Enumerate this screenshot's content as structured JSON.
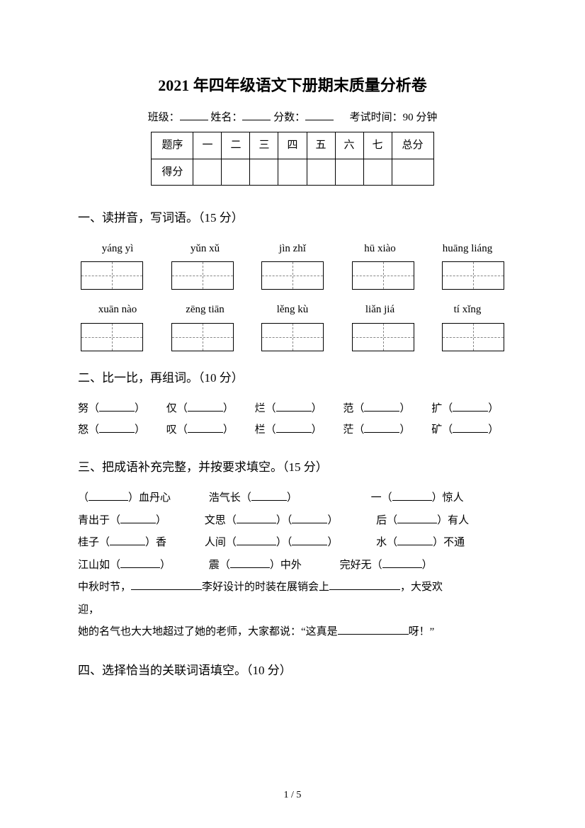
{
  "title": "2021 年四年级语文下册期末质量分析卷",
  "info": {
    "class_label": "班级：",
    "name_label": "姓名：",
    "score_label": "分数：",
    "time_label": "考试时间：90 分钟"
  },
  "score_table": {
    "row1": [
      "题序",
      "一",
      "二",
      "三",
      "四",
      "五",
      "六",
      "七",
      "总分"
    ],
    "row2_label": "得分"
  },
  "section1": {
    "heading": "一、读拼音，写词语。（15 分）",
    "pinyin_row1": [
      "yáng yì",
      "yǔn xǔ",
      "jìn zhǐ",
      "hū xiào",
      "huāng liáng"
    ],
    "pinyin_row2": [
      "xuān nào",
      "zēng tiān",
      "lěng kù",
      "liǎn jiá",
      "tí xǐng"
    ]
  },
  "section2": {
    "heading": "二、比一比，再组词。（10 分）",
    "line1_chars": [
      "努",
      "仅",
      "烂",
      "范",
      "扩"
    ],
    "line2_chars": [
      "怒",
      "叹",
      "栏",
      "茫",
      "矿"
    ]
  },
  "section3": {
    "heading": "三、把成语补充完整，并按要求填空。（15 分）",
    "l1a": "血丹心",
    "l1b_pre": "浩气长",
    "l1c_pre": "一",
    "l1c_post": "惊人",
    "l2a_pre": "青出于",
    "l2b_pre": "文思",
    "l2c_pre": "后",
    "l2c_post": "有人",
    "l3a_pre": "桂子",
    "l3a_post": "香",
    "l3b_pre": "人间",
    "l3c_pre": "水",
    "l3c_post": "不通",
    "l4a_pre": "江山如",
    "l4b_pre": "震",
    "l4b_post": "中外",
    "l4c_pre": "完好无",
    "l5_head": "中秋时节，",
    "l5_mid": "李好设计的时装在展销会上",
    "l5_tail": "，大受欢",
    "l6_head": "迎，",
    "l7_head": "她的名气也大大地超过了她的老师，大家都说：“这真是",
    "l7_tail": "呀！”"
  },
  "section4": {
    "heading": "四、选择恰当的关联词语填空。（10 分）"
  },
  "footer": "1 / 5"
}
